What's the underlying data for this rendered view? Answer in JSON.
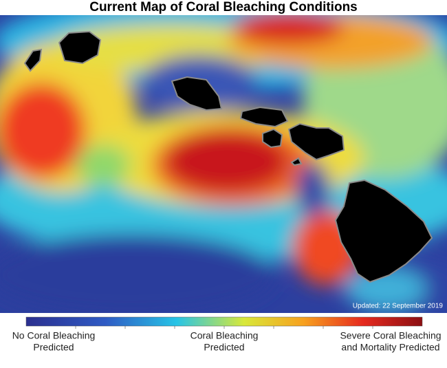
{
  "title": "Current Map of Coral Bleaching Conditions",
  "map": {
    "updated": "Updated: 22 September 2019"
  },
  "legend": {
    "labels": [
      [
        "No Coral Bleaching",
        "Predicted"
      ],
      [
        "Coral Bleaching",
        "Predicted"
      ],
      [
        "Severe Coral Bleaching",
        "and Mortality Predicted"
      ]
    ]
  }
}
